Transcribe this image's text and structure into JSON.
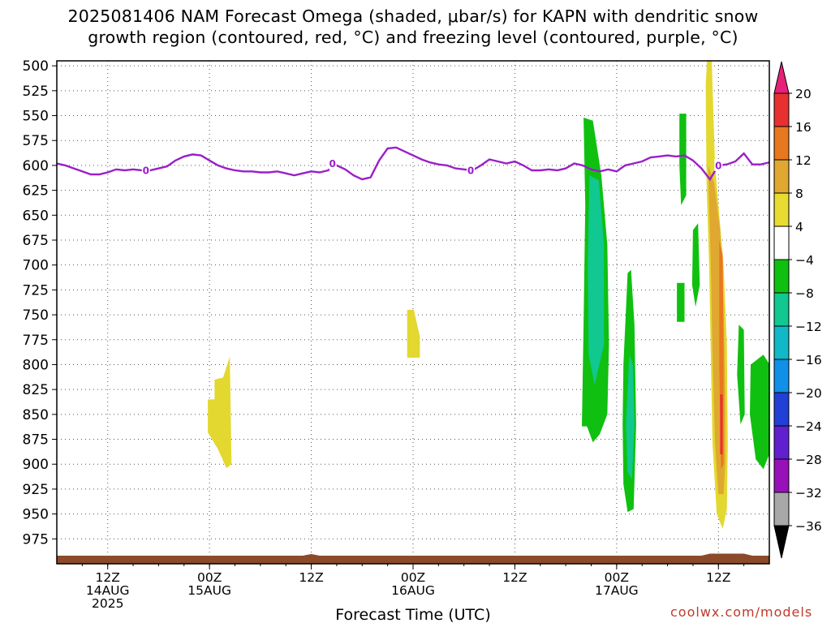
{
  "chart_data": {
    "type": "heatmap",
    "title": "2025081406 NAM Forecast Omega (shaded, μbar/s) for KAPN with dendritic snow",
    "subtitle": "growth region (contoured, red, °C) and freezing level (contoured, purple, °C)",
    "xlabel": "Forecast Time (UTC)",
    "ylabel": "",
    "y_axis": {
      "unit": "hPa",
      "inverted": true,
      "ticks": [
        500,
        525,
        550,
        575,
        600,
        625,
        650,
        675,
        700,
        725,
        750,
        775,
        800,
        825,
        850,
        875,
        900,
        925,
        950,
        975
      ],
      "range": [
        495,
        1000
      ]
    },
    "x_axis": {
      "range_hours": [
        0,
        84
      ],
      "ticks": [
        {
          "hour": 6,
          "line1": "12Z",
          "line2": "14AUG",
          "line3": "2025"
        },
        {
          "hour": 18,
          "line1": "00Z",
          "line2": "15AUG",
          "line3": ""
        },
        {
          "hour": 30,
          "line1": "12Z",
          "line2": "",
          "line3": ""
        },
        {
          "hour": 42,
          "line1": "00Z",
          "line2": "16AUG",
          "line3": ""
        },
        {
          "hour": 54,
          "line1": "12Z",
          "line2": "",
          "line3": ""
        },
        {
          "hour": 66,
          "line1": "00Z",
          "line2": "17AUG",
          "line3": ""
        },
        {
          "hour": 78,
          "line1": "12Z",
          "line2": "",
          "line3": ""
        }
      ]
    },
    "grid": true,
    "colorbar": {
      "labels": [
        "20",
        "16",
        "12",
        "8",
        "4",
        "−4",
        "−8",
        "−12",
        "−16",
        "−20",
        "−24",
        "−28",
        "−32",
        "−36"
      ],
      "levels": [
        20,
        16,
        12,
        8,
        4,
        -4,
        -8,
        -12,
        -16,
        -20,
        -24,
        -28,
        -32,
        -36
      ],
      "colors_top_to_bottom": [
        "#e8207a",
        "#e83030",
        "#e87820",
        "#e0a830",
        "#e8dc30",
        "#ffffff",
        "#10c010",
        "#10c890",
        "#10b8c8",
        "#1090e8",
        "#2040d8",
        "#6020d0",
        "#9810b8",
        "#a8a8a8",
        "#000000"
      ]
    },
    "omega_regions": [
      {
        "color": "#e3d830",
        "value": 4,
        "points": [
          [
            17.8,
            835
          ],
          [
            18.6,
            835
          ],
          [
            18.6,
            815
          ],
          [
            19.6,
            813
          ],
          [
            20.4,
            792
          ],
          [
            20.6,
            900
          ],
          [
            20.0,
            904
          ],
          [
            19.0,
            885
          ],
          [
            17.8,
            868
          ]
        ]
      },
      {
        "color": "#e3d830",
        "value": 4,
        "points": [
          [
            41.3,
            745
          ],
          [
            42.1,
            745
          ],
          [
            42.8,
            772
          ],
          [
            42.8,
            793
          ],
          [
            41.3,
            793
          ]
        ]
      },
      {
        "color": "#10c010",
        "value": -6,
        "points": [
          [
            62.1,
            552
          ],
          [
            63.2,
            555
          ],
          [
            64.2,
            610
          ],
          [
            64.9,
            680
          ],
          [
            65.1,
            780
          ],
          [
            64.9,
            850
          ],
          [
            64.0,
            870
          ],
          [
            63.2,
            878
          ],
          [
            62.5,
            862
          ],
          [
            61.9,
            862
          ],
          [
            62.1,
            760
          ],
          [
            62.3,
            640
          ]
        ]
      },
      {
        "color": "#10c890",
        "value": -10,
        "points": [
          [
            62.8,
            610
          ],
          [
            63.9,
            615
          ],
          [
            64.5,
            680
          ],
          [
            64.5,
            780
          ],
          [
            63.4,
            820
          ],
          [
            62.7,
            790
          ],
          [
            62.6,
            700
          ]
        ]
      },
      {
        "color": "#10c010",
        "value": -6,
        "points": [
          [
            67.3,
            708
          ],
          [
            67.7,
            705
          ],
          [
            68.1,
            760
          ],
          [
            68.3,
            860
          ],
          [
            68.0,
            945
          ],
          [
            67.3,
            948
          ],
          [
            66.8,
            920
          ],
          [
            66.7,
            860
          ],
          [
            66.8,
            800
          ]
        ]
      },
      {
        "color": "#10c890",
        "value": -10,
        "points": [
          [
            67.5,
            790
          ],
          [
            67.9,
            800
          ],
          [
            68.1,
            860
          ],
          [
            67.8,
            915
          ],
          [
            67.3,
            908
          ],
          [
            67.1,
            860
          ]
        ]
      },
      {
        "color": "#10c010",
        "value": -6,
        "points": [
          [
            73.4,
            548
          ],
          [
            74.2,
            548
          ],
          [
            74.2,
            630
          ],
          [
            73.6,
            640
          ],
          [
            73.4,
            600
          ]
        ]
      },
      {
        "color": "#10c010",
        "value": -6,
        "points": [
          [
            75.0,
            665
          ],
          [
            75.6,
            658
          ],
          [
            75.8,
            720
          ],
          [
            75.3,
            742
          ],
          [
            74.9,
            720
          ]
        ]
      },
      {
        "color": "#10c010",
        "value": -6,
        "points": [
          [
            73.1,
            718
          ],
          [
            74.0,
            718
          ],
          [
            74.0,
            757
          ],
          [
            73.1,
            757
          ]
        ]
      },
      {
        "color": "#10c010",
        "value": -6,
        "points": [
          [
            80.4,
            760
          ],
          [
            81.0,
            765
          ],
          [
            81.1,
            850
          ],
          [
            80.6,
            860
          ],
          [
            80.2,
            810
          ]
        ]
      },
      {
        "color": "#10c010",
        "value": -6,
        "points": [
          [
            81.8,
            800
          ],
          [
            83.3,
            790
          ],
          [
            84.8,
            810
          ],
          [
            85.6,
            770
          ],
          [
            86.8,
            680
          ],
          [
            87.4,
            700
          ],
          [
            87.9,
            780
          ],
          [
            87.8,
            870
          ],
          [
            87.4,
            955
          ],
          [
            86.6,
            960
          ],
          [
            85.8,
            910
          ],
          [
            85.2,
            880
          ],
          [
            84.0,
            890
          ],
          [
            83.3,
            905
          ],
          [
            82.4,
            895
          ],
          [
            81.7,
            850
          ]
        ]
      },
      {
        "color": "#10c890",
        "value": -10,
        "points": [
          [
            86.5,
            730
          ],
          [
            87.3,
            730
          ],
          [
            87.6,
            820
          ],
          [
            87.4,
            880
          ],
          [
            86.6,
            890
          ],
          [
            86.0,
            820
          ]
        ]
      },
      {
        "color": "#e3d830",
        "value": 6,
        "points": [
          [
            76.7,
            487
          ],
          [
            77.2,
            490
          ],
          [
            77.6,
            600
          ],
          [
            78.2,
            660
          ],
          [
            78.6,
            700
          ],
          [
            79.0,
            780
          ],
          [
            79.1,
            880
          ],
          [
            79.0,
            945
          ],
          [
            78.5,
            965
          ],
          [
            77.8,
            950
          ],
          [
            77.3,
            880
          ],
          [
            77.1,
            790
          ],
          [
            76.9,
            700
          ],
          [
            76.6,
            620
          ],
          [
            76.5,
            520
          ]
        ]
      },
      {
        "color": "#e0a830",
        "value": 10,
        "points": [
          [
            76.8,
            600
          ],
          [
            77.5,
            618
          ],
          [
            78.2,
            665
          ],
          [
            78.6,
            740
          ],
          [
            78.8,
            830
          ],
          [
            78.8,
            900
          ],
          [
            78.6,
            930
          ],
          [
            78.0,
            930
          ],
          [
            77.6,
            880
          ],
          [
            77.3,
            790
          ],
          [
            77.1,
            700
          ],
          [
            76.9,
            640
          ]
        ]
      },
      {
        "color": "#e87820",
        "value": 14,
        "points": [
          [
            78.1,
            675
          ],
          [
            78.5,
            690
          ],
          [
            78.6,
            780
          ],
          [
            78.6,
            900
          ],
          [
            78.3,
            905
          ],
          [
            78.1,
            800
          ]
        ]
      },
      {
        "color": "#e83030",
        "value": 18,
        "points": [
          [
            78.2,
            830
          ],
          [
            78.5,
            830
          ],
          [
            78.5,
            890
          ],
          [
            78.2,
            890
          ]
        ]
      }
    ],
    "freezing_level_series": {
      "color": "#9b1fc9",
      "value_label": "0",
      "points": [
        [
          0,
          598
        ],
        [
          1,
          600
        ],
        [
          2,
          603
        ],
        [
          3,
          606
        ],
        [
          4,
          609
        ],
        [
          5,
          609
        ],
        [
          6,
          607
        ],
        [
          7,
          604
        ],
        [
          8,
          605
        ],
        [
          9,
          604
        ],
        [
          10,
          605
        ],
        [
          11,
          605
        ],
        [
          12,
          603
        ],
        [
          13,
          601
        ],
        [
          14,
          595
        ],
        [
          15,
          591
        ],
        [
          16,
          589
        ],
        [
          17,
          590
        ],
        [
          18,
          595
        ],
        [
          19,
          600
        ],
        [
          20,
          603
        ],
        [
          21,
          605
        ],
        [
          22,
          606
        ],
        [
          23,
          606
        ],
        [
          24,
          607
        ],
        [
          25,
          607
        ],
        [
          26,
          606
        ],
        [
          27,
          608
        ],
        [
          28,
          610
        ],
        [
          29,
          608
        ],
        [
          30,
          606
        ],
        [
          31,
          607
        ],
        [
          32,
          605
        ],
        [
          32.5,
          598
        ],
        [
          33,
          600
        ],
        [
          34,
          604
        ],
        [
          35,
          610
        ],
        [
          36,
          614
        ],
        [
          37,
          612
        ],
        [
          38,
          595
        ],
        [
          39,
          583
        ],
        [
          40,
          582
        ],
        [
          41,
          586
        ],
        [
          42,
          590
        ],
        [
          43,
          594
        ],
        [
          44,
          597
        ],
        [
          45,
          599
        ],
        [
          46,
          600
        ],
        [
          47,
          603
        ],
        [
          48,
          604
        ],
        [
          49,
          605
        ],
        [
          50,
          600
        ],
        [
          51,
          594
        ],
        [
          52,
          596
        ],
        [
          53,
          598
        ],
        [
          54,
          596
        ],
        [
          55,
          600
        ],
        [
          56,
          605
        ],
        [
          57,
          605
        ],
        [
          58,
          604
        ],
        [
          59,
          605
        ],
        [
          60,
          603
        ],
        [
          61,
          598
        ],
        [
          62,
          600
        ],
        [
          63,
          604
        ],
        [
          64,
          606
        ],
        [
          65,
          604
        ],
        [
          66,
          606
        ],
        [
          67,
          600
        ],
        [
          68,
          598
        ],
        [
          69,
          596
        ],
        [
          70,
          592
        ],
        [
          71,
          591
        ],
        [
          72,
          590
        ],
        [
          73,
          591
        ],
        [
          74,
          590
        ],
        [
          75,
          595
        ],
        [
          76,
          603
        ],
        [
          77,
          614
        ],
        [
          78,
          600
        ],
        [
          79,
          599
        ],
        [
          80,
          596
        ],
        [
          81,
          588
        ],
        [
          82,
          599
        ],
        [
          83,
          599
        ],
        [
          84,
          597
        ],
        [
          85,
          601
        ],
        [
          86,
          595
        ],
        [
          87,
          580
        ],
        [
          88,
          581
        ],
        [
          89,
          582
        ]
      ],
      "label_positions": [
        10.5,
        32.5,
        48.8,
        78.0
      ]
    },
    "terrain_color": "#8b4a2a",
    "credit": "coolwx.com/models"
  }
}
